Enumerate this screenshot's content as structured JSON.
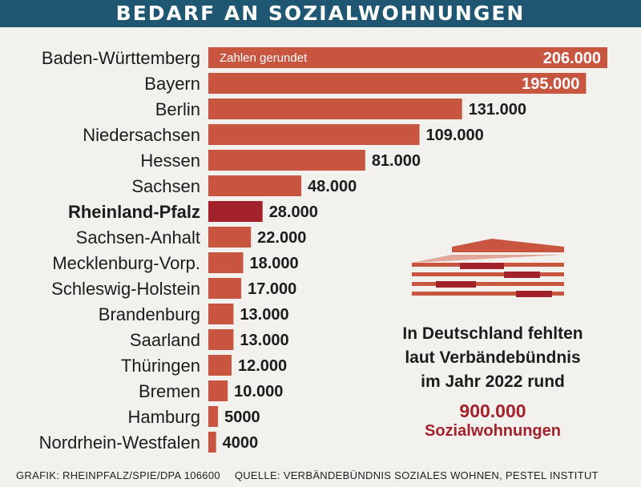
{
  "header": {
    "title": "BEDARF AN SOZIALWOHNUNGEN"
  },
  "chart_data": {
    "type": "bar",
    "orientation": "horizontal",
    "title": "BEDARF AN SOZIALWOHNUNGEN",
    "note": "Zahlen gerundet",
    "categories": [
      "Baden-Württemberg",
      "Bayern",
      "Berlin",
      "Niedersachsen",
      "Hessen",
      "Sachsen",
      "Rheinland-Pfalz",
      "Sachsen-Anhalt",
      "Mecklenburg-Vorp.",
      "Schleswig-Holstein",
      "Brandenburg",
      "Saarland",
      "Thüringen",
      "Bremen",
      "Hamburg",
      "Nordrhein-Westfalen"
    ],
    "values": [
      206000,
      195000,
      131000,
      109000,
      81000,
      48000,
      28000,
      22000,
      18000,
      17000,
      13000,
      13000,
      12000,
      10000,
      5000,
      4000
    ],
    "value_labels": [
      "206.000",
      "195.000",
      "131.000",
      "109.000",
      "81.000",
      "48.000",
      "28.000",
      "22.000",
      "18.000",
      "17.000",
      "13.000",
      "13.000",
      "12.000",
      "10.000",
      "5000",
      "4000"
    ],
    "highlight": "Rheinland-Pfalz",
    "colors": {
      "bar": "#c8553f",
      "highlight": "#a3212a",
      "text": "#1c1c1c"
    },
    "xlim": [
      0,
      206000
    ],
    "grid": false,
    "legend": "none"
  },
  "info": {
    "text_lines": [
      "In Deutschland fehlten",
      "laut Verbändebündnis",
      "im Jahr 2022 rund"
    ],
    "total": "900.000",
    "unit": "Sozialwohnungen"
  },
  "footer": {
    "credit": "GRAFIK: RHEINPFALZ/SPIE/DPA 106600",
    "source": "QUELLE: VERBÄNDEBÜNDNIS SOZIALES WOHNEN, PESTEL INSTITUT"
  }
}
